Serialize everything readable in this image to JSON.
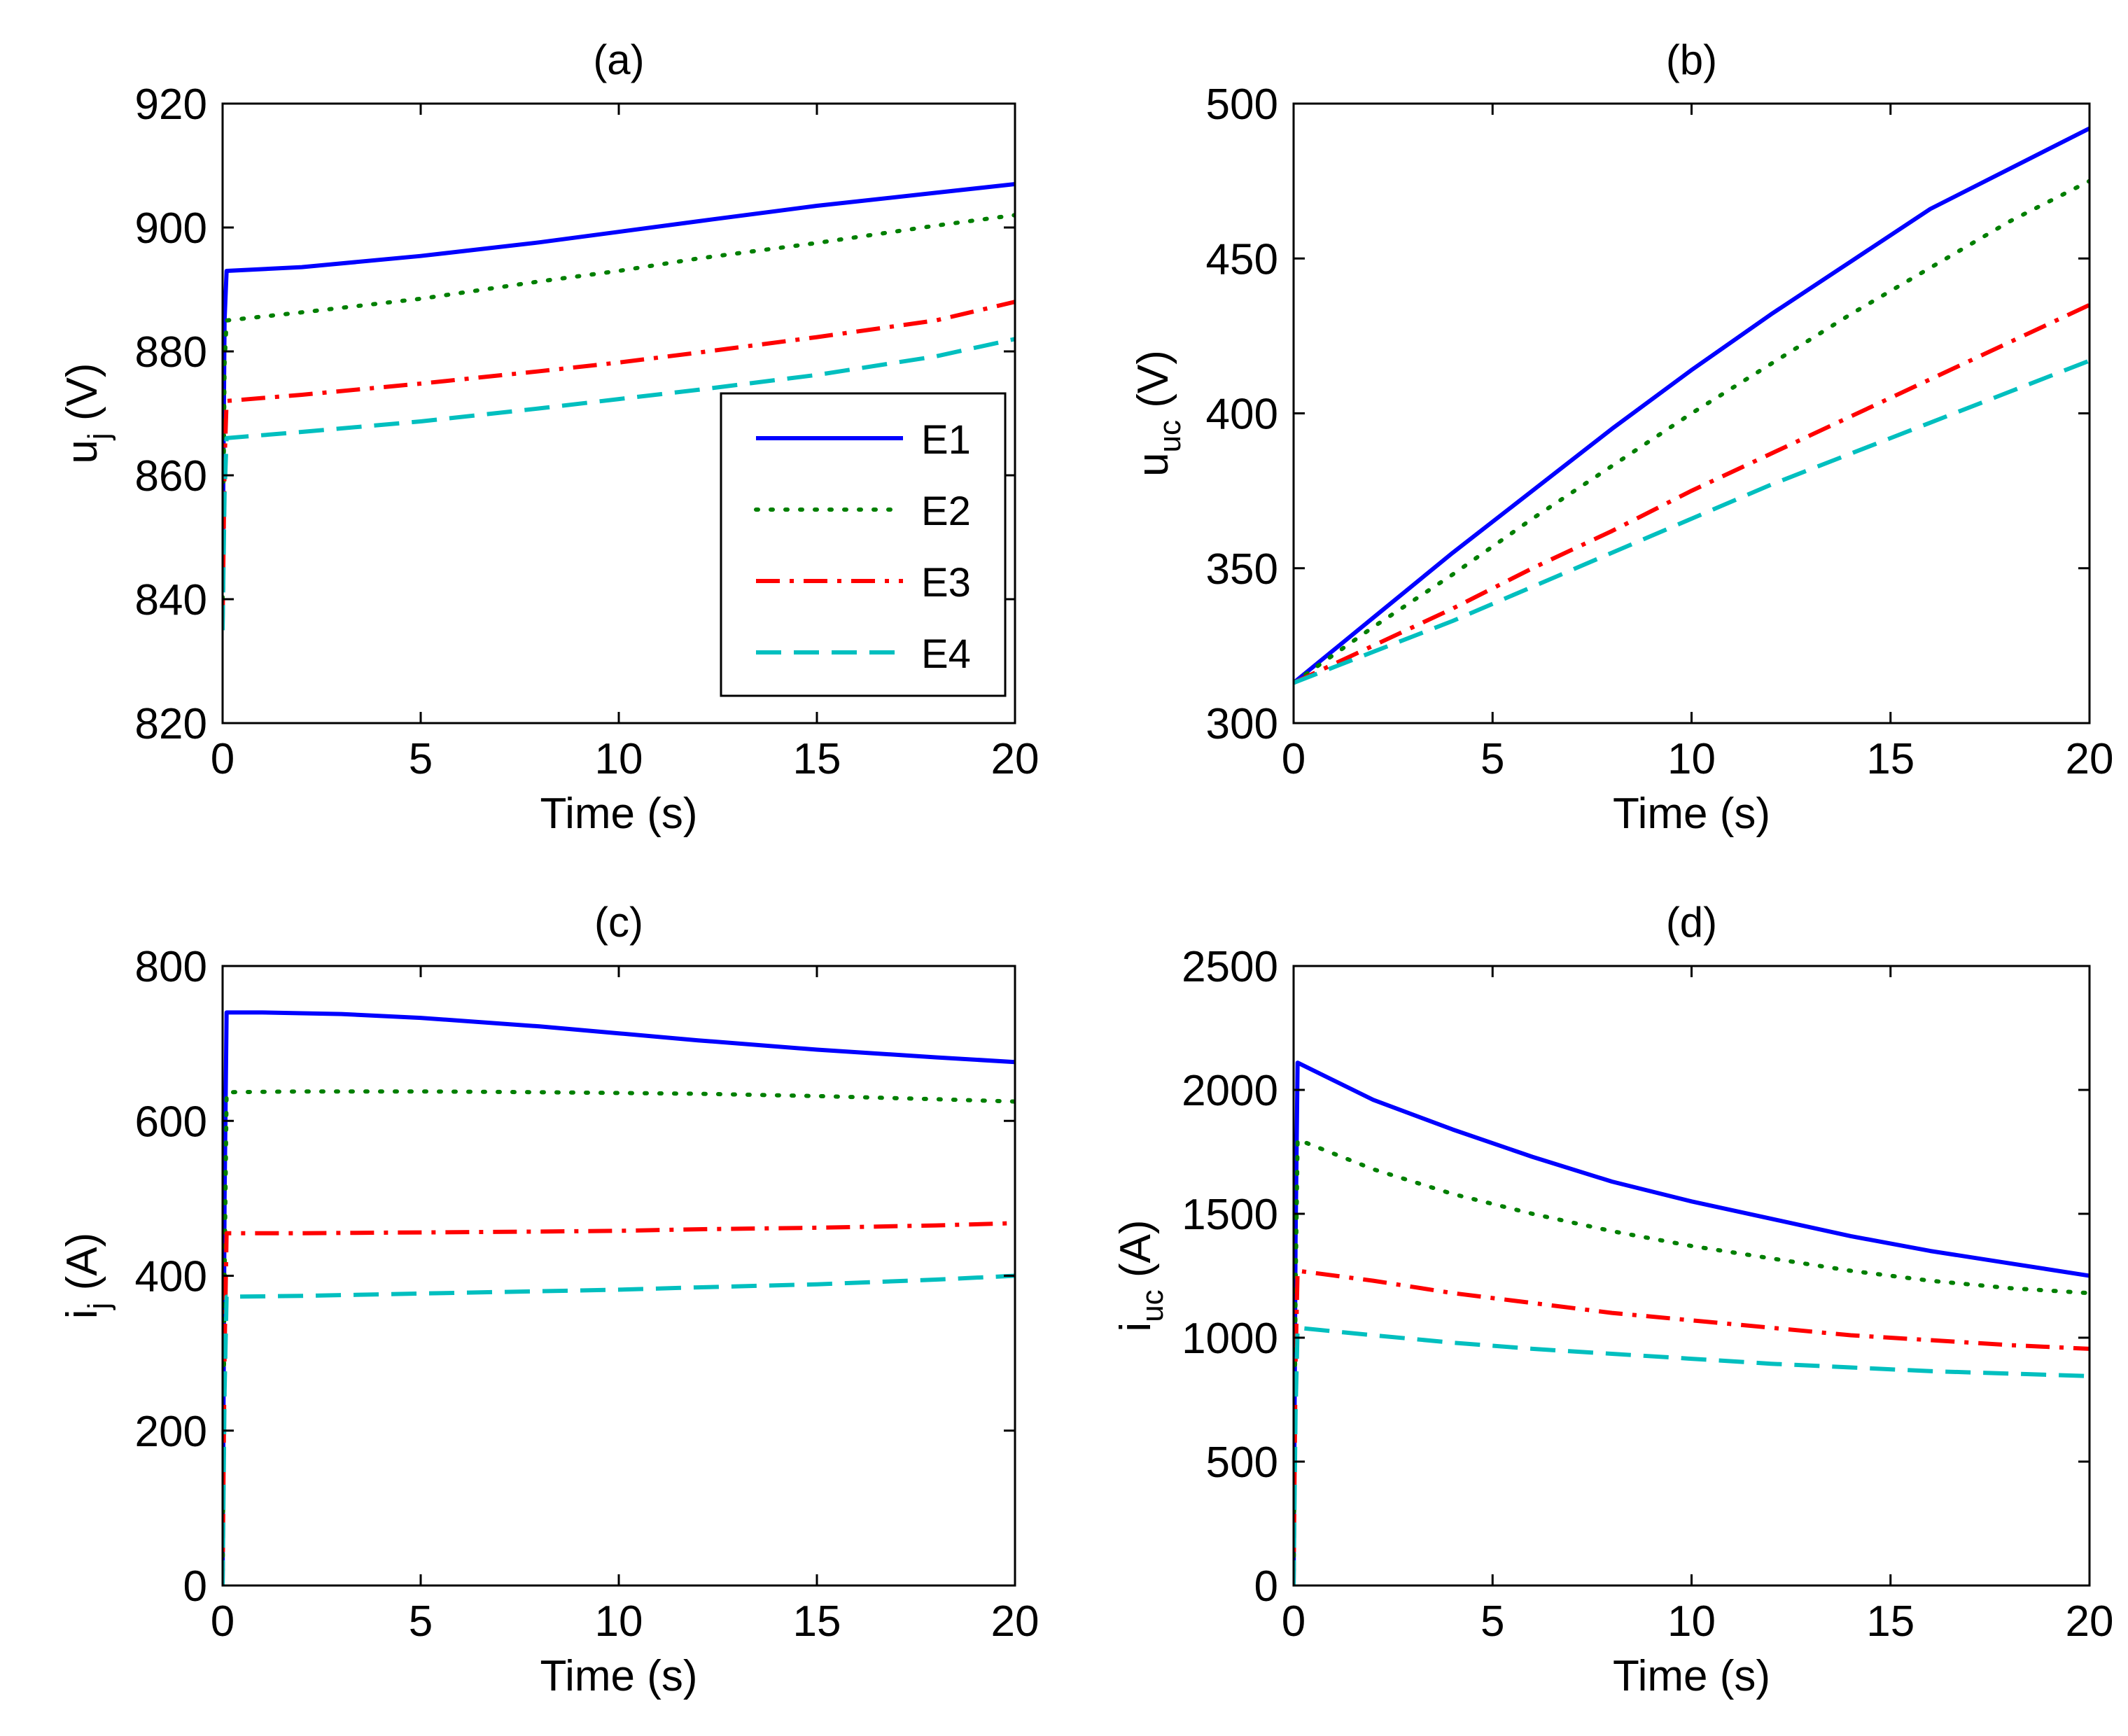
{
  "figure": {
    "series_names": [
      "E1",
      "E2",
      "E3",
      "E4"
    ],
    "colors": {
      "E1": "#0000ff",
      "E2": "#007f00",
      "E3": "#ff0000",
      "E4": "#00bfbf"
    }
  },
  "chart_data": [
    {
      "id": "a",
      "type": "line",
      "title": "(a)",
      "xlabel": "Time (s)",
      "ylabel": {
        "main": "u",
        "sub": "j",
        "unit": " (V)"
      },
      "xlim": [
        0,
        20
      ],
      "ylim": [
        820,
        920
      ],
      "xticks": [
        0,
        5,
        10,
        15,
        20
      ],
      "yticks": [
        820,
        840,
        860,
        880,
        900,
        920
      ],
      "legend": {
        "location": "bottom-right",
        "entries": [
          "E1",
          "E2",
          "E3",
          "E4"
        ]
      },
      "series": [
        {
          "name": "E1",
          "x": [
            0,
            0.05,
            0.1,
            2,
            5,
            8,
            10,
            12,
            15,
            18,
            20
          ],
          "values": [
            845,
            885,
            893,
            893.6,
            895.4,
            897.6,
            899.3,
            901,
            903.5,
            905.6,
            907
          ]
        },
        {
          "name": "E2",
          "x": [
            0,
            0.05,
            0.1,
            2,
            5,
            8,
            10,
            12,
            15,
            18,
            20
          ],
          "values": [
            840,
            878,
            885,
            886.3,
            888.5,
            891.3,
            893,
            895,
            897.5,
            900.3,
            902
          ]
        },
        {
          "name": "E3",
          "x": [
            0,
            0.05,
            0.1,
            2,
            5,
            8,
            10,
            12,
            15,
            18,
            20
          ],
          "values": [
            836,
            862,
            872,
            873,
            874.8,
            876.8,
            878.2,
            879.8,
            882.3,
            885,
            888
          ]
        },
        {
          "name": "E4",
          "x": [
            0,
            0.05,
            0.1,
            2,
            5,
            8,
            10,
            12,
            15,
            18,
            20
          ],
          "values": [
            835,
            857,
            866,
            867,
            868.7,
            870.8,
            872.3,
            873.8,
            876.2,
            879.2,
            882
          ]
        }
      ]
    },
    {
      "id": "b",
      "type": "line",
      "title": "(b)",
      "xlabel": "Time (s)",
      "ylabel": {
        "main": "u",
        "sub": "uc",
        "unit": " (V)"
      },
      "xlim": [
        0,
        20
      ],
      "ylim": [
        300,
        500
      ],
      "xticks": [
        0,
        5,
        10,
        15,
        20
      ],
      "yticks": [
        300,
        350,
        400,
        450,
        500
      ],
      "series": [
        {
          "name": "E1",
          "x": [
            0,
            2,
            4,
            6,
            8,
            10,
            12,
            14,
            16,
            18,
            20
          ],
          "values": [
            313,
            334,
            355,
            375,
            395,
            414,
            432,
            449,
            466,
            479,
            492
          ]
        },
        {
          "name": "E2",
          "x": [
            0,
            2,
            4,
            6,
            8,
            10,
            12,
            14,
            16,
            18,
            20
          ],
          "values": [
            313,
            331,
            348,
            366,
            383,
            400,
            416,
            432,
            447,
            462,
            475
          ]
        },
        {
          "name": "E3",
          "x": [
            0,
            2,
            4,
            6,
            8,
            10,
            12,
            14,
            16,
            18,
            20
          ],
          "values": [
            313,
            325,
            337,
            350,
            362,
            375,
            387,
            399,
            411,
            423,
            435
          ]
        },
        {
          "name": "E4",
          "x": [
            0,
            2,
            4,
            6,
            8,
            10,
            12,
            14,
            16,
            18,
            20
          ],
          "values": [
            313,
            323,
            333,
            344,
            355,
            366,
            377,
            387,
            397,
            407,
            417
          ]
        }
      ]
    },
    {
      "id": "c",
      "type": "line",
      "title": "(c)",
      "xlabel": "Time (s)",
      "ylabel": {
        "main": "i",
        "sub": "j",
        "unit": " (A)"
      },
      "xlim": [
        0,
        20
      ],
      "ylim": [
        0,
        800
      ],
      "xticks": [
        0,
        5,
        10,
        15,
        20
      ],
      "yticks": [
        0,
        200,
        400,
        600,
        800
      ],
      "series": [
        {
          "name": "E1",
          "x": [
            0,
            0.05,
            0.1,
            1,
            3,
            5,
            8,
            10,
            12,
            15,
            18,
            20
          ],
          "values": [
            0,
            500,
            740,
            740,
            738,
            733,
            722,
            713,
            704,
            692,
            682,
            676
          ]
        },
        {
          "name": "E2",
          "x": [
            0,
            0.05,
            0.1,
            2,
            5,
            8,
            10,
            12,
            15,
            18,
            20
          ],
          "values": [
            0,
            400,
            637,
            638,
            638,
            637,
            636,
            635,
            632,
            628,
            625
          ]
        },
        {
          "name": "E3",
          "x": [
            0,
            0.05,
            0.1,
            2,
            5,
            8,
            10,
            12,
            15,
            18,
            20
          ],
          "values": [
            0,
            300,
            455,
            455,
            456,
            457,
            458,
            460,
            462,
            465,
            468
          ]
        },
        {
          "name": "E4",
          "x": [
            0,
            0.05,
            0.1,
            2,
            5,
            8,
            10,
            12,
            15,
            18,
            20
          ],
          "values": [
            0,
            250,
            373,
            374,
            377,
            380,
            382,
            385,
            389,
            395,
            400
          ]
        }
      ]
    },
    {
      "id": "d",
      "type": "line",
      "title": "(d)",
      "xlabel": "Time (s)",
      "ylabel": {
        "main": "i",
        "sub": "uc",
        "unit": " (A)"
      },
      "xlim": [
        0,
        20
      ],
      "ylim": [
        0,
        2500
      ],
      "xticks": [
        0,
        5,
        10,
        15,
        20
      ],
      "yticks": [
        0,
        500,
        1000,
        1500,
        2000,
        2500
      ],
      "series": [
        {
          "name": "E1",
          "x": [
            0,
            0.05,
            0.1,
            2,
            4,
            6,
            8,
            10,
            12,
            14,
            16,
            18,
            20
          ],
          "values": [
            0,
            1400,
            2110,
            1960,
            1840,
            1730,
            1630,
            1550,
            1480,
            1410,
            1350,
            1300,
            1250
          ]
        },
        {
          "name": "E2",
          "x": [
            0,
            0.05,
            0.1,
            2,
            4,
            6,
            8,
            10,
            12,
            14,
            16,
            18,
            20
          ],
          "values": [
            0,
            1200,
            1800,
            1680,
            1580,
            1500,
            1430,
            1370,
            1320,
            1270,
            1230,
            1200,
            1180
          ]
        },
        {
          "name": "E3",
          "x": [
            0,
            0.05,
            0.1,
            2,
            4,
            6,
            8,
            10,
            12,
            14,
            16,
            18,
            20
          ],
          "values": [
            0,
            900,
            1270,
            1230,
            1180,
            1140,
            1100,
            1070,
            1040,
            1010,
            990,
            970,
            955
          ]
        },
        {
          "name": "E4",
          "x": [
            0,
            0.05,
            0.1,
            2,
            4,
            6,
            8,
            10,
            12,
            14,
            16,
            18,
            20
          ],
          "values": [
            0,
            700,
            1040,
            1010,
            980,
            955,
            935,
            915,
            895,
            880,
            865,
            855,
            845
          ]
        }
      ]
    }
  ]
}
